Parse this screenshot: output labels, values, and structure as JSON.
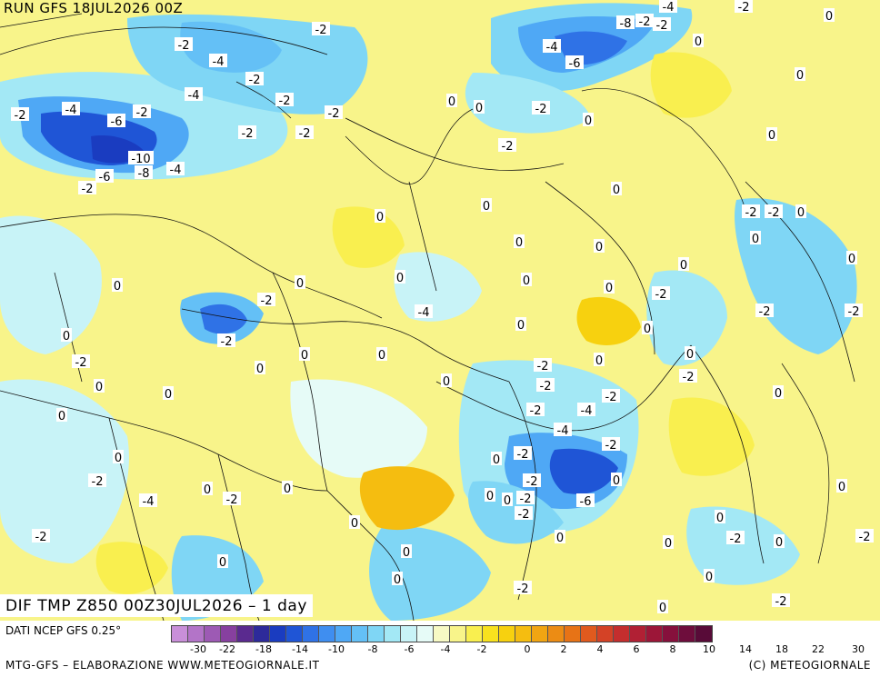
{
  "header": {
    "run_label": "RUN GFS 18JUL2026 00Z",
    "field_title": "DIF TMP Z850 00Z30JUL2026 – 1 day"
  },
  "footer": {
    "source": "DATI NCEP GFS 0.25°",
    "credit_left": "MTG-GFS – ELABORAZIONE WWW.METEOGIORNALE.IT",
    "credit_right": "(C) METEOGIORNALE"
  },
  "colorbar": {
    "colors": [
      "#c98fd9",
      "#b374c8",
      "#9d5ab4",
      "#87409f",
      "#5a2a8f",
      "#2d2a9a",
      "#1a3cc0",
      "#1f55d6",
      "#2f72e6",
      "#3f8ef0",
      "#4fa8f5",
      "#64c0f6",
      "#7fd6f5",
      "#a3e8f5",
      "#c8f3f7",
      "#e6fbf7",
      "#f7f9c4",
      "#f8f48a",
      "#f9ef4f",
      "#f8e21e",
      "#f7d10f",
      "#f5bd10",
      "#f1a512",
      "#ec8c14",
      "#e77316",
      "#e05a1e",
      "#d44226",
      "#c42e2e",
      "#b12034",
      "#9c1638",
      "#86103c",
      "#6e0d3c",
      "#580b38"
    ],
    "tick_labels": [
      "-30",
      "-22",
      "-18",
      "-14",
      "-10",
      "-8",
      "-6",
      "-4",
      "-2",
      "0",
      "2",
      "4",
      "6",
      "8",
      "10",
      "14",
      "18",
      "22",
      "30"
    ]
  },
  "map_labels": [
    {
      "t": "-4"
    },
    {
      "t": "-2"
    },
    {
      "t": "0"
    },
    {
      "t": "-2"
    },
    {
      "t": "-8"
    },
    {
      "t": "-2"
    },
    {
      "t": "0"
    },
    {
      "t": "-2"
    },
    {
      "t": "-4"
    },
    {
      "t": "-2"
    },
    {
      "t": "-6"
    },
    {
      "t": "0"
    },
    {
      "t": "-4"
    },
    {
      "t": "-2"
    },
    {
      "t": "-4"
    },
    {
      "t": "-2"
    },
    {
      "t": "-2"
    },
    {
      "t": "-4"
    },
    {
      "t": "-2"
    },
    {
      "t": "0"
    },
    {
      "t": "0"
    },
    {
      "t": "-2"
    },
    {
      "t": "0"
    },
    {
      "t": "-6"
    },
    {
      "t": "-2"
    },
    {
      "t": "-2"
    },
    {
      "t": "0"
    },
    {
      "t": "-2"
    },
    {
      "t": "-2"
    },
    {
      "t": "-10"
    },
    {
      "t": "-8"
    },
    {
      "t": "-4"
    },
    {
      "t": "-6"
    },
    {
      "t": "-2"
    },
    {
      "t": "0"
    },
    {
      "t": "0"
    },
    {
      "t": "0"
    },
    {
      "t": "-2"
    },
    {
      "t": "-2"
    },
    {
      "t": "0"
    },
    {
      "t": "0"
    },
    {
      "t": "0"
    },
    {
      "t": "0"
    },
    {
      "t": "0"
    },
    {
      "t": "0"
    },
    {
      "t": "0"
    },
    {
      "t": "0"
    },
    {
      "t": "-2"
    },
    {
      "t": "0"
    },
    {
      "t": "0"
    },
    {
      "t": "-2"
    },
    {
      "t": "0"
    },
    {
      "t": "-2"
    },
    {
      "t": "-2"
    },
    {
      "t": "-4"
    },
    {
      "t": "0"
    },
    {
      "t": "0"
    },
    {
      "t": "0"
    },
    {
      "t": "0"
    },
    {
      "t": "0"
    },
    {
      "t": "0"
    },
    {
      "t": "-2"
    },
    {
      "t": "-2"
    },
    {
      "t": "0"
    },
    {
      "t": "0"
    },
    {
      "t": "0"
    },
    {
      "t": "-2"
    },
    {
      "t": "-4"
    },
    {
      "t": "-2"
    },
    {
      "t": "-2"
    },
    {
      "t": "-2"
    },
    {
      "t": "0"
    },
    {
      "t": "0"
    },
    {
      "t": "-2"
    },
    {
      "t": "-4"
    },
    {
      "t": "0"
    },
    {
      "t": "-6"
    },
    {
      "t": "0"
    },
    {
      "t": "0"
    },
    {
      "t": "-2"
    },
    {
      "t": "-2"
    },
    {
      "t": "0"
    },
    {
      "t": "-2"
    },
    {
      "t": "-2"
    },
    {
      "t": "0"
    },
    {
      "t": "0"
    },
    {
      "t": "-2"
    },
    {
      "t": "-4"
    },
    {
      "t": "0"
    },
    {
      "t": "-2"
    },
    {
      "t": "0"
    },
    {
      "t": "0"
    },
    {
      "t": "-2"
    },
    {
      "t": "0"
    },
    {
      "t": "0"
    },
    {
      "t": "-2"
    },
    {
      "t": "0"
    },
    {
      "t": "-2"
    },
    {
      "t": "0"
    },
    {
      "t": "0"
    },
    {
      "t": "0"
    },
    {
      "t": "0"
    },
    {
      "t": "-2"
    },
    {
      "t": "0"
    },
    {
      "t": "0"
    },
    {
      "t": "-2"
    },
    {
      "t": "0"
    },
    {
      "t": "0"
    },
    {
      "t": "-2"
    }
  ]
}
